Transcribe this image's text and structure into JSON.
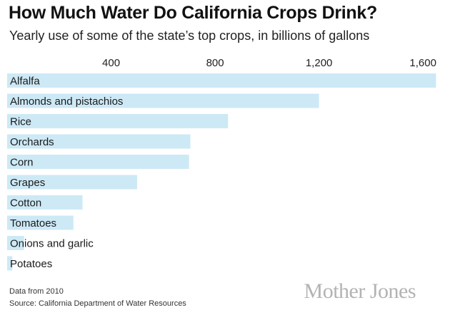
{
  "chart_data": {
    "type": "bar",
    "orientation": "horizontal",
    "title": "How Much Water Do California Crops Drink?",
    "subtitle": "Yearly use of some of the state’s top crops, in billions of gallons",
    "categories": [
      "Alfalfa",
      "Almonds and pistachios",
      "Rice",
      "Orchards",
      "Corn",
      "Grapes",
      "Cotton",
      "Tomatoes",
      "Onions and garlic",
      "Potatoes"
    ],
    "values": [
      1650,
      1200,
      850,
      705,
      700,
      500,
      290,
      255,
      65,
      20
    ],
    "x_ticks": [
      400,
      800,
      1200,
      1600
    ],
    "x_tick_labels": [
      "400",
      "800",
      "1,200",
      "1,600"
    ],
    "xlim": [
      0,
      1660
    ],
    "bar_color": "#cde9f6",
    "grid": false,
    "legend": "none"
  },
  "footer": {
    "note": "Data from 2010",
    "source": "Source: California Department of Water Resources",
    "brand": "Mother Jones"
  }
}
